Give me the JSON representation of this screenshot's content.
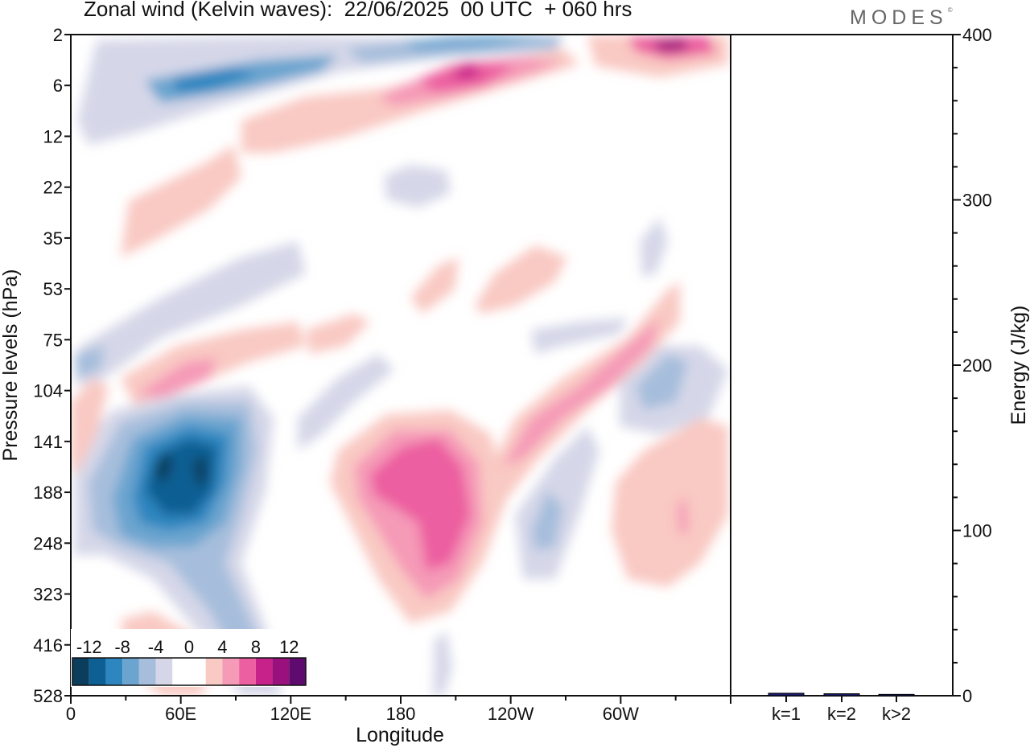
{
  "header": {
    "title": "Zonal wind (Kelvin waves):  22/06/2025  00 UTC  + 060 hrs",
    "brand": "MODES",
    "brand_mark": "©"
  },
  "chart_data": [
    {
      "type": "heatmap",
      "title": "Zonal wind (Kelvin waves):  22/06/2025  00 UTC  + 060 hrs",
      "xlabel": "Longitude",
      "ylabel": "Pressure levels (hPa)",
      "x_ticks": [
        "0",
        "60E",
        "120E",
        "180",
        "120W",
        "60W"
      ],
      "x_tick_degrees": [
        0,
        60,
        120,
        180,
        240,
        300
      ],
      "xlim": [
        0,
        360
      ],
      "y_ticks": [
        2,
        6,
        12,
        22,
        35,
        53,
        75,
        104,
        141,
        188,
        248,
        323,
        416,
        528
      ],
      "y_scale": "pressure levels (top = 2 hPa, bottom = 528 hPa)",
      "colorbar": {
        "labels": [
          "-12",
          "-8",
          "-4",
          "0",
          "4",
          "8",
          "12"
        ],
        "levels": [
          -14,
          -12,
          -10,
          -8,
          -6,
          -4,
          -2,
          0,
          2,
          4,
          6,
          8,
          10,
          12,
          14
        ],
        "colors": [
          "#0b3d5c",
          "#0e5f93",
          "#2d86c0",
          "#6ba4cf",
          "#a6bedc",
          "#d5d7e8",
          "#ffffff",
          "#ffffff",
          "#f9c9c3",
          "#f59ab7",
          "#ec5fa0",
          "#c7228a",
          "#9a107c",
          "#5e0a6e"
        ],
        "position": "bottom-left"
      },
      "features": [
        {
          "lon": 52,
          "lev": 170,
          "value": -13
        },
        {
          "lon": 66,
          "lev": 172,
          "value": -13
        },
        {
          "lon": 58,
          "lev": 215,
          "value": -8
        },
        {
          "lon": 62,
          "lev": 6,
          "value": -10
        },
        {
          "lon": 195,
          "lev": 2,
          "value": -8
        },
        {
          "lon": 205,
          "lev": 5,
          "value": 10
        },
        {
          "lon": 322,
          "lev": 2,
          "value": 12
        },
        {
          "lon": 200,
          "lev": 170,
          "value": 9
        },
        {
          "lon": 195,
          "lev": 250,
          "value": 8
        },
        {
          "lon": 265,
          "lev": 140,
          "value": 6
        },
        {
          "lon": 315,
          "lev": 120,
          "value": -6
        },
        {
          "lon": 330,
          "lev": 210,
          "value": 5
        },
        {
          "lon": 55,
          "lev": 100,
          "value": 5
        },
        {
          "lon": 160,
          "lev": 24,
          "value": -3
        },
        {
          "lon": 90,
          "lev": 12,
          "value": 3
        }
      ],
      "grid": false
    },
    {
      "type": "bar",
      "categories": [
        "k=1",
        "k=2",
        "k>2"
      ],
      "values": [
        1.5,
        1.2,
        0.8
      ],
      "ylabel": "Energy (J/kg)",
      "ylim": [
        0,
        400
      ],
      "y_ticks": [
        0,
        100,
        200,
        300,
        400
      ],
      "bar_color": "#1a1a6e"
    }
  ]
}
